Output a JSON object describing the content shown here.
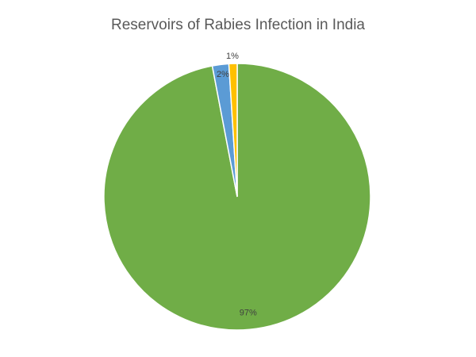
{
  "chart_data": {
    "type": "pie",
    "title": "Reservoirs of Rabies Infection in India",
    "legend": "none",
    "slices": [
      {
        "value": 97,
        "label": "97%",
        "color": "#70ad47"
      },
      {
        "value": 2,
        "label": "2%",
        "color": "#5b9bd5"
      },
      {
        "value": 1,
        "label": "1%",
        "color": "#ffc000"
      }
    ]
  }
}
